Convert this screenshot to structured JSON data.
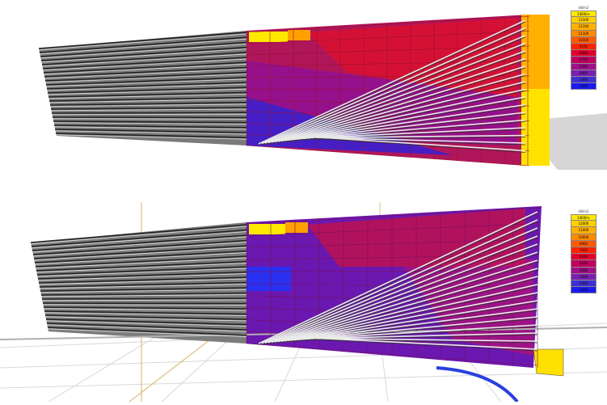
{
  "top_view": {
    "legend": {
      "title": "kN/m2",
      "entries": [
        {
          "label": "14600+",
          "color": "#ffe800"
        },
        {
          "label": "13100",
          "color": "#ffd000"
        },
        {
          "label": "12100",
          "color": "#ffb000"
        },
        {
          "label": "11100",
          "color": "#ff8a00"
        },
        {
          "label": "10100",
          "color": "#ff5a00"
        },
        {
          "label": "9100",
          "color": "#ff2200"
        },
        {
          "label": "8000",
          "color": "#e2002a"
        },
        {
          "label": "6700",
          "color": "#c00060"
        },
        {
          "label": "5500",
          "color": "#a0108a"
        },
        {
          "label": "4000",
          "color": "#7a20b0"
        },
        {
          "label": "2400",
          "color": "#4030d0"
        },
        {
          "label": "1600",
          "color": "#1a1af0"
        }
      ]
    }
  },
  "bottom_view": {
    "legend": {
      "title": "kN/m2",
      "entries": [
        {
          "label": "14600+",
          "color": "#ffe800"
        },
        {
          "label": "12000",
          "color": "#ffd000"
        },
        {
          "label": "11000",
          "color": "#ffb000"
        },
        {
          "label": "10000",
          "color": "#ff8a00"
        },
        {
          "label": "9000",
          "color": "#ff5a00"
        },
        {
          "label": "7000",
          "color": "#ff2200"
        },
        {
          "label": "6100",
          "color": "#e2002a"
        },
        {
          "label": "5100",
          "color": "#c00060"
        },
        {
          "label": "4200",
          "color": "#a0108a"
        },
        {
          "label": "3000",
          "color": "#7a20b0"
        },
        {
          "label": "2000",
          "color": "#4030d0"
        },
        {
          "label": "1000",
          "color": "#1a1af0"
        }
      ]
    }
  }
}
